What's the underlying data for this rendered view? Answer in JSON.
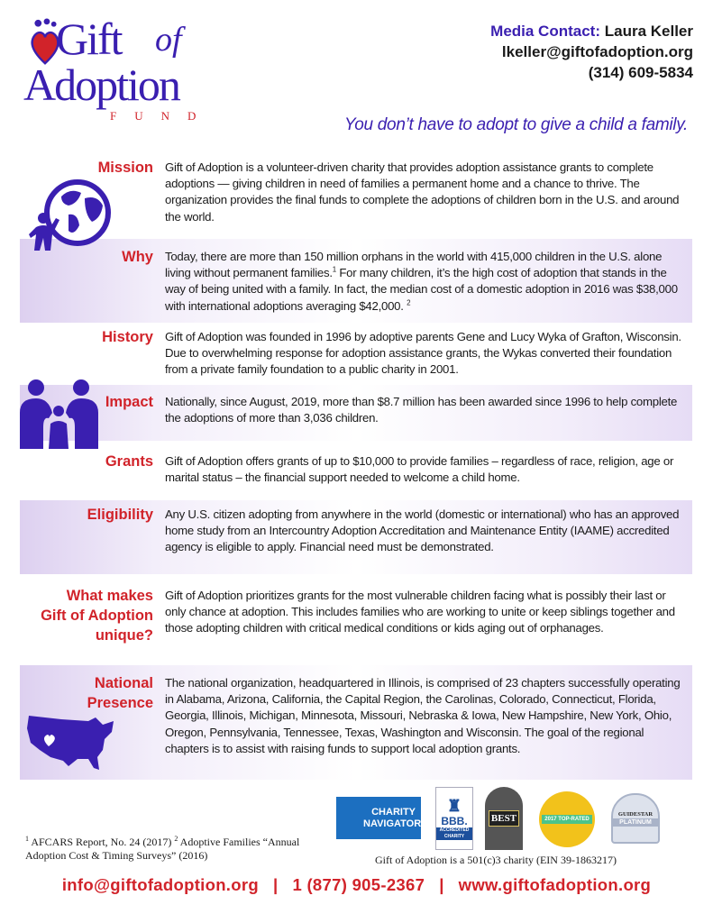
{
  "logo": {
    "line1": "Gift",
    "of": "of",
    "line2": "Adoption",
    "fund": "FUND"
  },
  "contact": {
    "label": "Media Contact:",
    "name": "Laura Keller",
    "email": "lkeller@giftofadoption.org",
    "phone": "(314) 609-5834"
  },
  "tagline": "You don’t have to adopt to give a child a family.",
  "sections": [
    {
      "heading": "Mission",
      "text": "Gift of Adoption is a volunteer-driven charity that provides adoption assistance grants to complete adoptions — giving children in need of families a permanent home and a chance to thrive. The organization provides the final funds to complete the adoptions of children born in the U.S. and around the world."
    },
    {
      "heading": "Why",
      "text_a": "Today, there are more than 150 million orphans in the world with 415,000 children in the U.S. alone living without permanent families.",
      "sup_a": "1",
      "text_b": " For many children, it’s the high cost of adoption that stands in the way of being united with a family. In fact, the median cost of a domestic adoption in 2016 was $38,000 with international adoptions averaging $42,000. ",
      "sup_b": "2"
    },
    {
      "heading": "History",
      "text": "Gift of Adoption was founded in 1996 by adoptive parents Gene and Lucy Wyka of Grafton, Wisconsin. Due to overwhelming response for adoption assistance grants, the Wykas converted their foundation from a private family foundation to a public charity in 2001."
    },
    {
      "heading": "Impact",
      "text": "Nationally, since August, 2019, more than $8.7 million has been awarded since 1996 to help complete the adoptions of more than 3,036 children."
    },
    {
      "heading": "Grants",
      "text": "Gift of Adoption offers grants of up to $10,000 to provide families – regardless of race, religion, age or marital status – the financial support needed to welcome a child home."
    },
    {
      "heading": "Eligibility",
      "text": "Any U.S. citizen adopting from anywhere in the world (domestic or international) who has an approved home study from an Intercountry Adoption Accreditation and Maintenance Entity (IAAME) accredited agency is eligible to apply. Financial need must be demonstrated."
    },
    {
      "heading_lines": [
        "What makes",
        "Gift of Adoption",
        "unique?"
      ],
      "text": "Gift of Adoption prioritizes grants for the most vulnerable children facing what is possibly their last or only chance at adoption. This includes families who are working to unite or keep siblings together and those adopting children with critical medical conditions or kids aging out of orphanages."
    },
    {
      "heading_lines": [
        "National",
        "Presence"
      ],
      "text": "The national organization, headquartered in Illinois, is comprised of 23 chapters successfully operating in Alabama, Arizona, California, the Capital Region, the Carolinas, Colorado, Connecticut, Florida, Georgia, Illinois, Michigan, Minnesota, Missouri, Nebraska & Iowa, New Hampshire, New York, Ohio, Oregon, Pennsylvania, Tennessee, Texas, Washington and Wisconsin. The goal of the regional chapters is to assist with raising funds to support local adoption grants."
    }
  ],
  "badges": {
    "charity_navigator": "CHARITY NAVIGATOR",
    "bbb": "BBB.",
    "bbb_sub": "ACCREDITED CHARITY",
    "best": "BEST",
    "great": "2017 TOP-RATED",
    "guidestar": "GUIDESTAR",
    "guidestar_sub": "PLATINUM"
  },
  "footnotes": {
    "sup1": "1",
    "text1": " AFCARS Report, No. 24 (2017) ",
    "sup2": "2",
    "text2": " Adoptive Families “Annual Adoption Cost & Timing Surveys” (2016)"
  },
  "ein": "Gift of Adoption is a 501(c)3 charity (EIN 39-1863217)",
  "footer": {
    "email": "info@giftofadoption.org",
    "phone": "1 (877) 905-2367",
    "website": "www.giftofadoption.org",
    "separator": "|"
  },
  "colors": {
    "purple": "#3a1fb0",
    "red": "#d1232a"
  }
}
